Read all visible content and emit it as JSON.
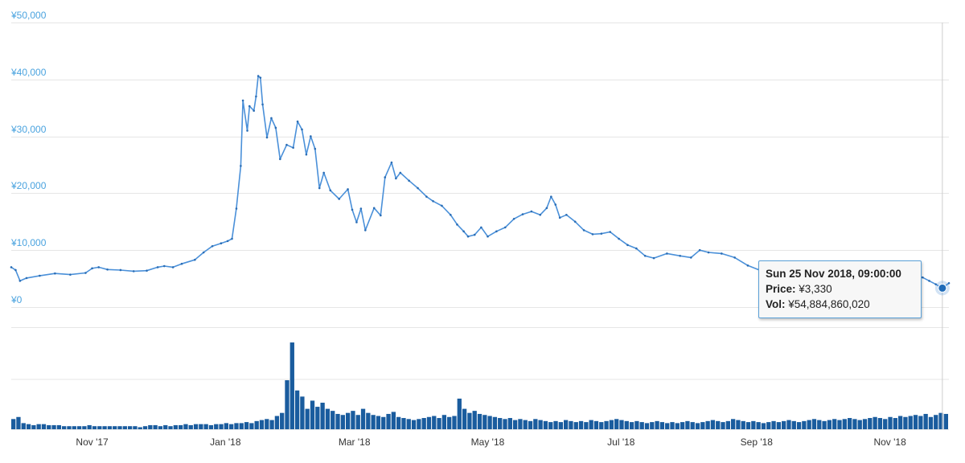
{
  "chart_data": {
    "type": "line",
    "price_axis": {
      "ticks": [
        "¥0",
        "¥10,000",
        "¥20,000",
        "¥30,000",
        "¥40,000",
        "¥50,000"
      ],
      "ylim": [
        0,
        50000
      ]
    },
    "x_ticks": [
      "Nov '17",
      "Jan '18",
      "Mar '18",
      "May '18",
      "Jul '18",
      "Sep '18",
      "Nov '18"
    ],
    "x_range": [
      "2017-09-25",
      "2018-11-28"
    ],
    "grid": true,
    "series": [
      {
        "kind": "price-line",
        "color": "#4a90d9",
        "points": [
          [
            "2017-09-25",
            7000
          ],
          [
            "2017-09-27",
            6500
          ],
          [
            "2017-09-29",
            4600
          ],
          [
            "2017-10-02",
            5100
          ],
          [
            "2017-10-08",
            5500
          ],
          [
            "2017-10-15",
            5900
          ],
          [
            "2017-10-22",
            5700
          ],
          [
            "2017-10-29",
            6000
          ],
          [
            "2017-11-01",
            6800
          ],
          [
            "2017-11-04",
            7000
          ],
          [
            "2017-11-08",
            6600
          ],
          [
            "2017-11-14",
            6500
          ],
          [
            "2017-11-20",
            6300
          ],
          [
            "2017-11-26",
            6400
          ],
          [
            "2017-12-01",
            7000
          ],
          [
            "2017-12-04",
            7200
          ],
          [
            "2017-12-08",
            7000
          ],
          [
            "2017-12-12",
            7600
          ],
          [
            "2017-12-18",
            8300
          ],
          [
            "2017-12-22",
            9600
          ],
          [
            "2017-12-26",
            10700
          ],
          [
            "2017-12-30",
            11200
          ],
          [
            "2018-01-02",
            11600
          ],
          [
            "2018-01-04",
            12000
          ],
          [
            "2018-01-06",
            17300
          ],
          [
            "2018-01-08",
            24800
          ],
          [
            "2018-01-09",
            36300
          ],
          [
            "2018-01-11",
            31000
          ],
          [
            "2018-01-12",
            35300
          ],
          [
            "2018-01-14",
            34500
          ],
          [
            "2018-01-15",
            37000
          ],
          [
            "2018-01-16",
            40600
          ],
          [
            "2018-01-17",
            40300
          ],
          [
            "2018-01-18",
            35600
          ],
          [
            "2018-01-20",
            29800
          ],
          [
            "2018-01-22",
            33200
          ],
          [
            "2018-01-24",
            31500
          ],
          [
            "2018-01-26",
            26000
          ],
          [
            "2018-01-29",
            28500
          ],
          [
            "2018-02-01",
            28000
          ],
          [
            "2018-02-03",
            32600
          ],
          [
            "2018-02-05",
            31200
          ],
          [
            "2018-02-07",
            26800
          ],
          [
            "2018-02-09",
            30000
          ],
          [
            "2018-02-11",
            27800
          ],
          [
            "2018-02-13",
            20900
          ],
          [
            "2018-02-15",
            23600
          ],
          [
            "2018-02-18",
            20500
          ],
          [
            "2018-02-22",
            19000
          ],
          [
            "2018-02-26",
            20700
          ],
          [
            "2018-02-28",
            17100
          ],
          [
            "2018-03-02",
            14900
          ],
          [
            "2018-03-04",
            17300
          ],
          [
            "2018-03-06",
            13500
          ],
          [
            "2018-03-10",
            17400
          ],
          [
            "2018-03-13",
            16100
          ],
          [
            "2018-03-15",
            22800
          ],
          [
            "2018-03-18",
            25400
          ],
          [
            "2018-03-20",
            22600
          ],
          [
            "2018-03-22",
            23600
          ],
          [
            "2018-03-26",
            22200
          ],
          [
            "2018-03-30",
            20900
          ],
          [
            "2018-04-03",
            19400
          ],
          [
            "2018-04-06",
            18600
          ],
          [
            "2018-04-10",
            17800
          ],
          [
            "2018-04-14",
            16200
          ],
          [
            "2018-04-17",
            14500
          ],
          [
            "2018-04-20",
            13300
          ],
          [
            "2018-04-22",
            12400
          ],
          [
            "2018-04-25",
            12700
          ],
          [
            "2018-04-28",
            14000
          ],
          [
            "2018-05-01",
            12400
          ],
          [
            "2018-05-05",
            13300
          ],
          [
            "2018-05-09",
            14000
          ],
          [
            "2018-05-13",
            15500
          ],
          [
            "2018-05-17",
            16300
          ],
          [
            "2018-05-21",
            16800
          ],
          [
            "2018-05-25",
            16200
          ],
          [
            "2018-05-28",
            17400
          ],
          [
            "2018-05-30",
            19400
          ],
          [
            "2018-06-01",
            18000
          ],
          [
            "2018-06-03",
            15700
          ],
          [
            "2018-06-06",
            16200
          ],
          [
            "2018-06-10",
            15000
          ],
          [
            "2018-06-14",
            13500
          ],
          [
            "2018-06-18",
            12800
          ],
          [
            "2018-06-22",
            12900
          ],
          [
            "2018-06-26",
            13200
          ],
          [
            "2018-06-30",
            12000
          ],
          [
            "2018-07-04",
            10900
          ],
          [
            "2018-07-08",
            10300
          ],
          [
            "2018-07-12",
            9000
          ],
          [
            "2018-07-16",
            8600
          ],
          [
            "2018-07-22",
            9400
          ],
          [
            "2018-07-28",
            9000
          ],
          [
            "2018-08-02",
            8700
          ],
          [
            "2018-08-06",
            10000
          ],
          [
            "2018-08-10",
            9600
          ],
          [
            "2018-08-16",
            9400
          ],
          [
            "2018-08-22",
            8700
          ],
          [
            "2018-08-28",
            7300
          ],
          [
            "2018-09-03",
            6400
          ],
          [
            "2018-09-09",
            6600
          ],
          [
            "2018-09-15",
            6800
          ],
          [
            "2018-09-22",
            7100
          ],
          [
            "2018-09-28",
            7000
          ],
          [
            "2018-10-04",
            6800
          ],
          [
            "2018-10-11",
            7100
          ],
          [
            "2018-10-18",
            6700
          ],
          [
            "2018-10-25",
            6500
          ],
          [
            "2018-11-01",
            6400
          ],
          [
            "2018-11-07",
            6000
          ],
          [
            "2018-11-12",
            5700
          ],
          [
            "2018-11-16",
            5200
          ],
          [
            "2018-11-19",
            4600
          ],
          [
            "2018-11-22",
            4000
          ],
          [
            "2018-11-25",
            3330
          ],
          [
            "2018-11-28",
            4200
          ]
        ]
      },
      {
        "kind": "volume-bars",
        "color": "#1a5c9e",
        "values": [
          0.1,
          0.12,
          0.06,
          0.05,
          0.04,
          0.05,
          0.05,
          0.04,
          0.04,
          0.04,
          0.03,
          0.03,
          0.03,
          0.03,
          0.03,
          0.04,
          0.03,
          0.03,
          0.03,
          0.03,
          0.03,
          0.03,
          0.03,
          0.03,
          0.03,
          0.02,
          0.03,
          0.04,
          0.04,
          0.03,
          0.04,
          0.03,
          0.04,
          0.04,
          0.05,
          0.04,
          0.05,
          0.05,
          0.05,
          0.04,
          0.05,
          0.05,
          0.06,
          0.05,
          0.06,
          0.06,
          0.07,
          0.06,
          0.08,
          0.09,
          0.1,
          0.09,
          0.13,
          0.16,
          0.48,
          0.85,
          0.38,
          0.32,
          0.2,
          0.28,
          0.22,
          0.26,
          0.2,
          0.18,
          0.15,
          0.14,
          0.16,
          0.18,
          0.14,
          0.2,
          0.16,
          0.14,
          0.13,
          0.12,
          0.15,
          0.17,
          0.12,
          0.11,
          0.1,
          0.09,
          0.1,
          0.11,
          0.12,
          0.13,
          0.11,
          0.14,
          0.12,
          0.13,
          0.3,
          0.2,
          0.16,
          0.18,
          0.15,
          0.14,
          0.13,
          0.12,
          0.11,
          0.1,
          0.11,
          0.09,
          0.1,
          0.09,
          0.08,
          0.1,
          0.09,
          0.08,
          0.07,
          0.08,
          0.07,
          0.09,
          0.08,
          0.07,
          0.08,
          0.07,
          0.09,
          0.08,
          0.07,
          0.08,
          0.09,
          0.1,
          0.09,
          0.08,
          0.07,
          0.08,
          0.07,
          0.06,
          0.07,
          0.08,
          0.07,
          0.06,
          0.07,
          0.06,
          0.07,
          0.08,
          0.07,
          0.06,
          0.07,
          0.08,
          0.09,
          0.08,
          0.07,
          0.08,
          0.1,
          0.09,
          0.08,
          0.07,
          0.08,
          0.07,
          0.06,
          0.07,
          0.08,
          0.07,
          0.08,
          0.09,
          0.08,
          0.07,
          0.08,
          0.09,
          0.1,
          0.09,
          0.08,
          0.09,
          0.1,
          0.09,
          0.1,
          0.11,
          0.1,
          0.09,
          0.1,
          0.11,
          0.12,
          0.11,
          0.1,
          0.12,
          0.11,
          0.13,
          0.12,
          0.13,
          0.14,
          0.13,
          0.15,
          0.12,
          0.14,
          0.16,
          0.15
        ]
      }
    ]
  },
  "tooltip": {
    "date": "Sun 25 Nov 2018, 09:00:00",
    "price_label": "Price:",
    "price_value": "¥3,330",
    "vol_label": "Vol:",
    "vol_value": "¥54,884,860,020"
  }
}
